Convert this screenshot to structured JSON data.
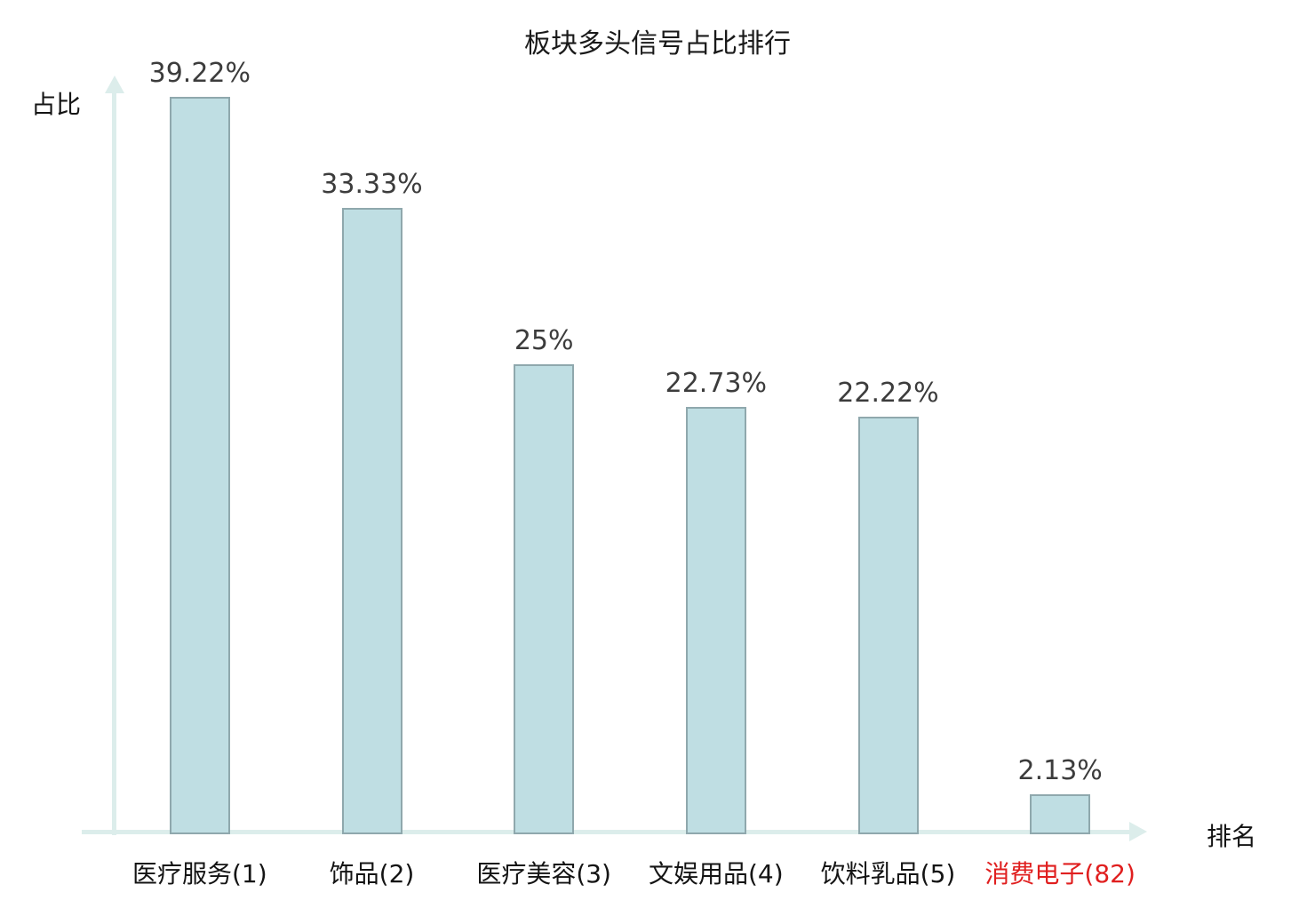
{
  "chart_data": {
    "type": "bar",
    "title": "板块多头信号占比排行",
    "xlabel": "排名",
    "ylabel": "占比",
    "categories": [
      "医疗服务(1)",
      "饰品(2)",
      "医疗美容(3)",
      "文娱用品(4)",
      "饮料乳品(5)",
      "消费电子(82)"
    ],
    "values": [
      39.22,
      33.33,
      25,
      22.73,
      22.22,
      2.13
    ],
    "value_labels": [
      "39.22%",
      "33.33%",
      "25%",
      "22.73%",
      "22.22%",
      "2.13%"
    ],
    "ranks": [
      1,
      2,
      3,
      4,
      5,
      82
    ],
    "highlighted_category_index": 5,
    "ylim": [
      0,
      40
    ],
    "grid": false,
    "legend_position": "none",
    "colors": {
      "bar_fill": "#bfdee3",
      "bar_border": "#8fa8ad",
      "axis": "#dcedeb",
      "value_label": "#3c3c3c",
      "tick_label": "#141414",
      "highlight_tick_label": "#e01f1f",
      "title": "#1a1a1a"
    }
  }
}
